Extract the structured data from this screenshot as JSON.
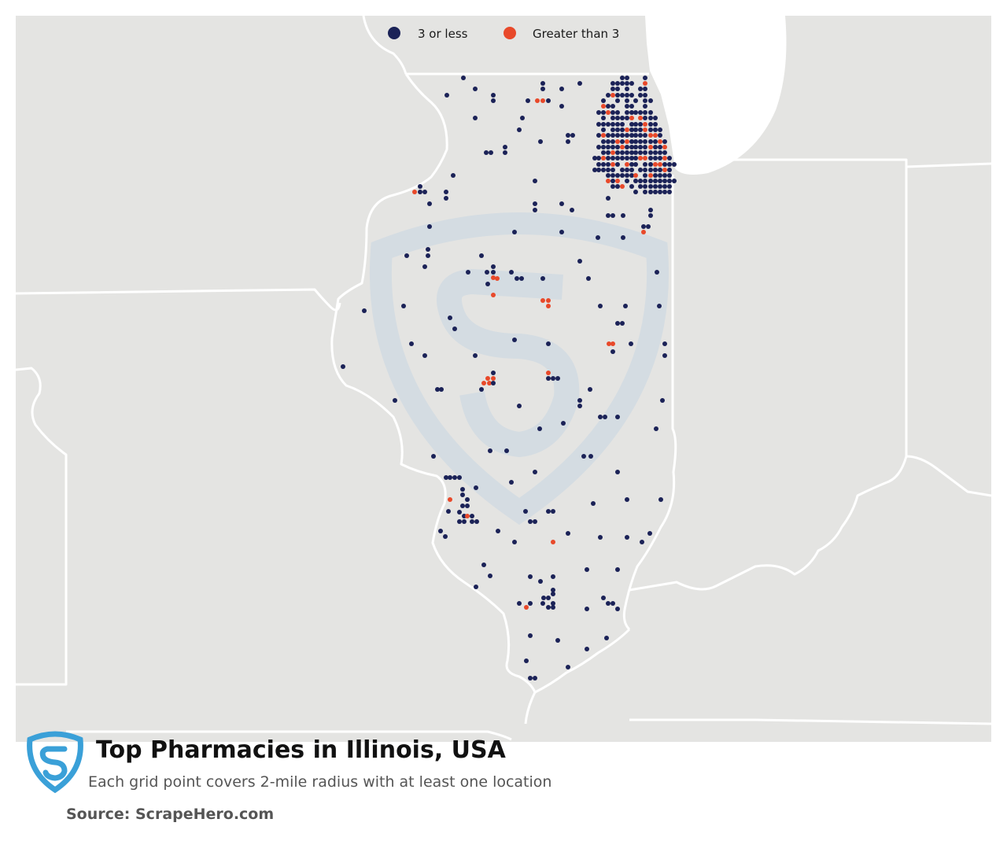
{
  "legend": {
    "items": [
      {
        "label": "3 or less",
        "color": "#1b2257"
      },
      {
        "label": "Greater than 3",
        "color": "#e8492a"
      }
    ]
  },
  "footer": {
    "title": "Top Pharmacies in Illinois, USA",
    "subtitle": "Each grid point covers 2-mile radius with at least one location",
    "source": "Source: ScrapeHero.com"
  },
  "colors": {
    "land": "#e4e4e2",
    "water": "#ffffff",
    "border": "#ffffff",
    "low": "#1b2257",
    "high": "#e8492a",
    "brand": "#3aa0d8",
    "watermark": "#cdd9e3"
  },
  "icons": {
    "logo": "scrapehero-shield-icon",
    "watermark": "scrapehero-shield-watermark"
  }
}
